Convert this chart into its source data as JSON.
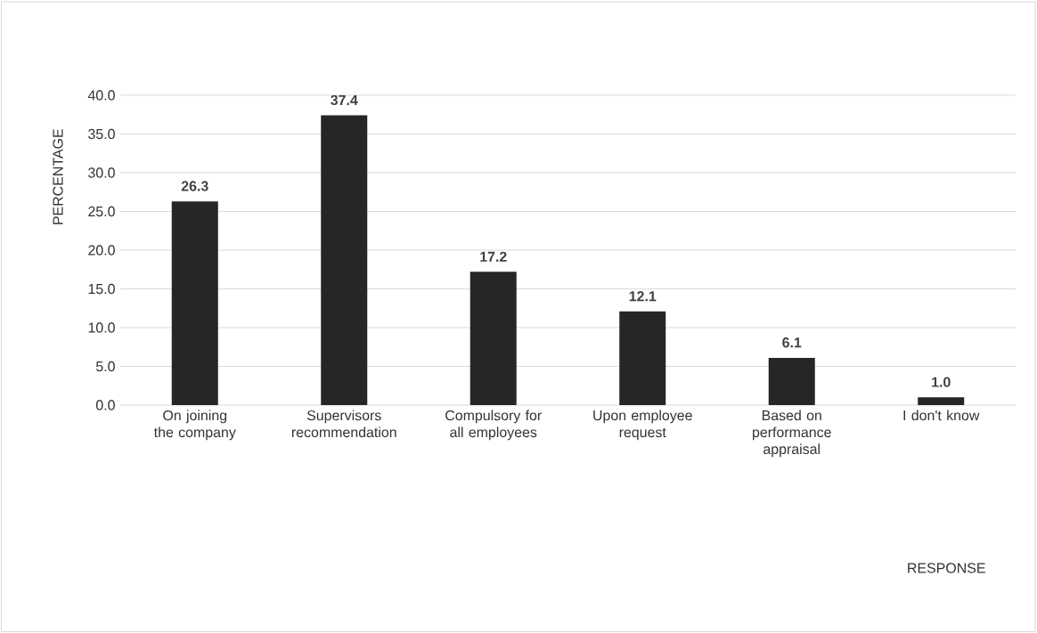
{
  "chart_data": {
    "type": "bar",
    "annotations": [
      "RESPONSE"
    ],
    "ylabel": "PERCENTAGE",
    "categories": [
      "On joining the company",
      "Supervisors recommendation",
      "Compulsory for all employees",
      "Upon employee request",
      "Based on performance appraisal",
      "I don't know"
    ],
    "values": [
      26.3,
      37.4,
      17.2,
      12.1,
      6.1,
      1.0
    ],
    "color": "#262626",
    "ylim": [
      0,
      40
    ],
    "yticks": [
      {
        "value": 0,
        "label": "0.0"
      },
      {
        "value": 5,
        "label": "5.0"
      },
      {
        "value": 10,
        "label": "10.0"
      },
      {
        "value": 15,
        "label": "15.0"
      },
      {
        "value": 20,
        "label": "20.0"
      },
      {
        "value": 25,
        "label": "25.0"
      },
      {
        "value": 30,
        "label": "30.0"
      },
      {
        "value": 35,
        "label": "35.0"
      },
      {
        "value": 40,
        "label": "40.0"
      }
    ],
    "value_labels": [
      "26.3",
      "37.4",
      "17.2",
      "12.1",
      "6.1",
      "1.0"
    ],
    "grid": "y"
  }
}
